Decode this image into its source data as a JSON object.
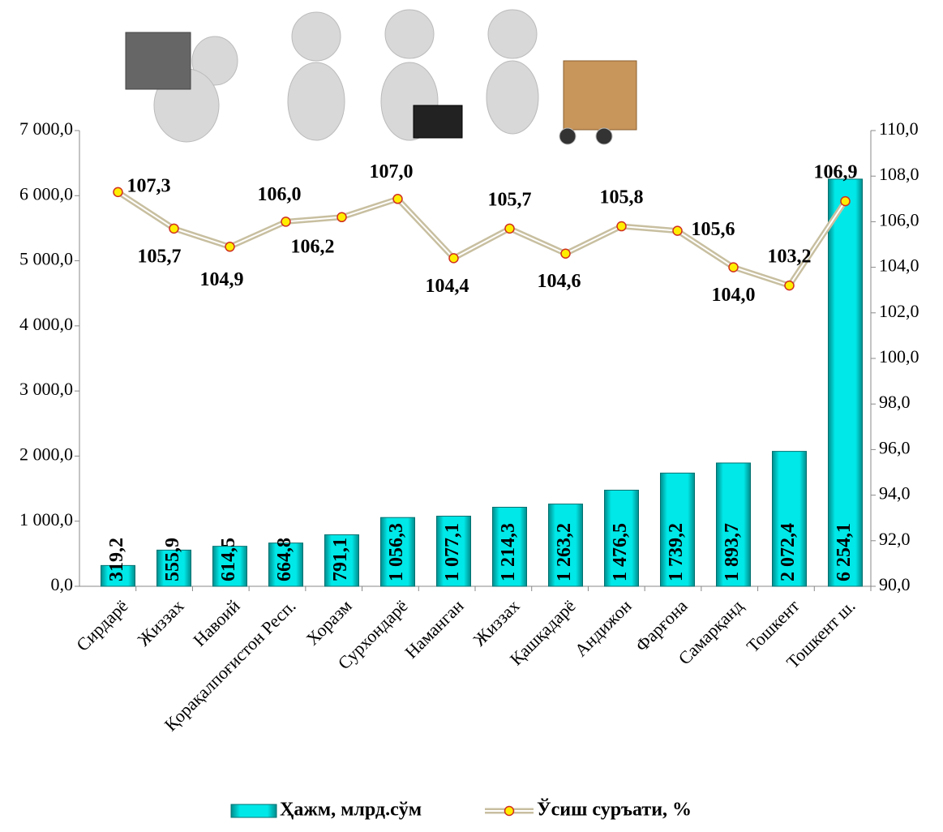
{
  "chart_data": {
    "type": "bar_line",
    "categories": [
      "Сирдарё",
      "Жиззах",
      "Навоий",
      "Қорақалпоғистон Респ.",
      "Хоразм",
      "Сурхондарё",
      "Наманган",
      "Жиззах",
      "Қашқадарё",
      "Андижон",
      "Фарғона",
      "Самарқанд",
      "Тошкент",
      "Тошкент ш."
    ],
    "series": [
      {
        "name": "Ҳажм, млрд.сўм",
        "color": "#00e0e0",
        "type": "bar",
        "values": [
          319.2,
          555.9,
          614.5,
          664.8,
          791.1,
          1056.3,
          1077.1,
          1214.3,
          1263.2,
          1476.5,
          1739.2,
          1893.7,
          2072.4,
          6254.1
        ],
        "value_labels": [
          "319,2",
          "555,9",
          "614,5",
          "664,8",
          "791,1",
          "1 056,3",
          "1 077,1",
          "1 214,3",
          "1 263,2",
          "1 476,5",
          "1 739,2",
          "1 893,7",
          "2 072,4",
          "6 254,1"
        ]
      },
      {
        "name": "Ўсиш суръати, %",
        "color": "#c8bfa0",
        "type": "line",
        "axis": "y2",
        "values": [
          107.3,
          105.7,
          104.9,
          106.0,
          106.2,
          107.0,
          104.4,
          105.7,
          104.6,
          105.8,
          105.6,
          104.0,
          103.2,
          106.9
        ],
        "value_labels": [
          "107,3",
          "105,7",
          "104,9",
          "106,0",
          "106,2",
          "107,0",
          "104,4",
          "105,7",
          "104,6",
          "105,8",
          "105,6",
          "104,0",
          "103,2",
          "106,9"
        ]
      }
    ],
    "ylim": [
      0,
      7000
    ],
    "yticks": [
      {
        "value": 0,
        "label": "0,0"
      },
      {
        "value": 1000,
        "label": "1 000,0"
      },
      {
        "value": 2000,
        "label": "2 000,0"
      },
      {
        "value": 3000,
        "label": "3 000,0"
      },
      {
        "value": 4000,
        "label": "4 000,0"
      },
      {
        "value": 5000,
        "label": "5 000,0"
      },
      {
        "value": 6000,
        "label": "6 000,0"
      },
      {
        "value": 7000,
        "label": "7 000,0"
      }
    ],
    "y2lim": [
      90,
      110
    ],
    "y2ticks": [
      {
        "value": 90,
        "label": "90,0"
      },
      {
        "value": 92,
        "label": "92,0"
      },
      {
        "value": 94,
        "label": "94,0"
      },
      {
        "value": 96,
        "label": "96,0"
      },
      {
        "value": 98,
        "label": "98,0"
      },
      {
        "value": 100,
        "label": "100,0"
      },
      {
        "value": 102,
        "label": "102,0"
      },
      {
        "value": 104,
        "label": "104,0"
      },
      {
        "value": 106,
        "label": "106,0"
      },
      {
        "value": 108,
        "label": "108,0"
      },
      {
        "value": 110,
        "label": "110,0"
      }
    ],
    "legend": "bottom"
  }
}
